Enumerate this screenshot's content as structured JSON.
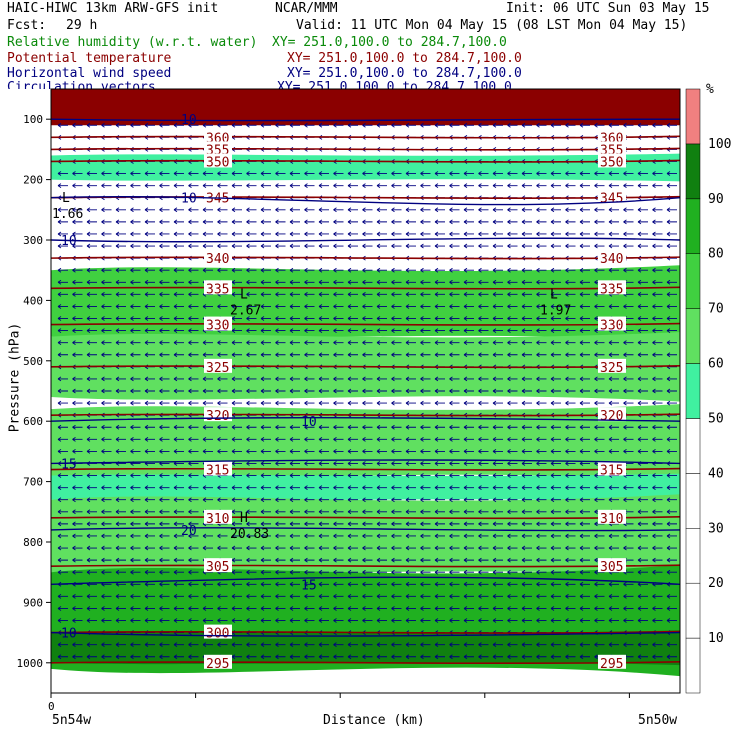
{
  "header": {
    "model": "HAIC-HIWC 13km ARW-GFS init",
    "org": "NCAR/MMM",
    "init": "Init: 06 UTC Sun 03 May 15",
    "fcst_label": "Fcst:",
    "fcst_value": "29 h",
    "valid": "Valid: 11 UTC Mon 04 May 15 (08 LST Mon 04 May 15)"
  },
  "fields": [
    {
      "name": "Relative humidity (w.r.t. water)",
      "xy": "XY= 251.0,100.0 to 284.7,100.0",
      "color": "#0a8a0a"
    },
    {
      "name": "Potential temperature",
      "xy": "XY= 251.0,100.0 to 284.7,100.0",
      "color": "#8b0000"
    },
    {
      "name": "Horizontal wind speed",
      "xy": "XY= 251.0,100.0 to 284.7,100.0",
      "color": "#000080"
    },
    {
      "name": "Circulation vectors",
      "xy": "XY= 251.0,100.0 to 284.7,100.0",
      "color": "#000080"
    }
  ],
  "colors": {
    "rh": [
      "#ffffff",
      "#ffffff",
      "#ffffff",
      "#ffffff",
      "#ffffff",
      "#40f0a0",
      "#60e060",
      "#40d040",
      "#20b020",
      "#108010",
      "#f08080"
    ],
    "theta": "#8b0000",
    "wind": "#000080"
  },
  "chart_data": {
    "type": "heatmap",
    "title": "",
    "xlabel": "Distance (km)",
    "ylabel": "Pressure (hPa)",
    "x_ticks": [
      "0"
    ],
    "x_endpoints": [
      "5n54w",
      "5n50w"
    ],
    "y_ticks": [
      100,
      200,
      300,
      400,
      500,
      600,
      700,
      800,
      900,
      1000
    ],
    "ylim": [
      1050,
      50
    ],
    "colorbar": {
      "unit": "%",
      "levels": [
        10,
        20,
        30,
        40,
        50,
        60,
        70,
        80,
        90,
        100
      ]
    },
    "rh_bands": [
      {
        "p_top": 160,
        "p_bot": 200,
        "rh": 55
      },
      {
        "p_top": 350,
        "p_bot": 460,
        "rh": 75
      },
      {
        "p_top": 460,
        "p_bot": 560,
        "rh": 60
      },
      {
        "p_top": 580,
        "p_bot": 690,
        "rh": 60
      },
      {
        "p_top": 690,
        "p_bot": 730,
        "rh": 55
      },
      {
        "p_top": 730,
        "p_bot": 850,
        "rh": 60
      },
      {
        "p_top": 850,
        "p_bot": 1010,
        "rh": 80
      },
      {
        "p_top": 950,
        "p_bot": 1000,
        "rh": 95
      }
    ],
    "theta_contours": [
      {
        "value": 360,
        "p": 130,
        "labels": [
          "360",
          "360"
        ]
      },
      {
        "value": 355,
        "p": 150,
        "labels": [
          "355",
          "355"
        ]
      },
      {
        "value": 350,
        "p": 170,
        "labels": [
          "350",
          "350"
        ]
      },
      {
        "value": 345,
        "p": 230,
        "labels": [
          "345",
          "345"
        ]
      },
      {
        "value": 340,
        "p": 330,
        "labels": [
          "340",
          "340"
        ]
      },
      {
        "value": 335,
        "p": 380,
        "labels": [
          "335",
          "335"
        ]
      },
      {
        "value": 330,
        "p": 440,
        "labels": [
          "330",
          "330"
        ]
      },
      {
        "value": 325,
        "p": 510,
        "labels": [
          "325",
          "325"
        ]
      },
      {
        "value": 320,
        "p": 590,
        "labels": [
          "320",
          "320"
        ]
      },
      {
        "value": 315,
        "p": 680,
        "labels": [
          "315",
          "315"
        ]
      },
      {
        "value": 310,
        "p": 760,
        "labels": [
          "310",
          "310"
        ]
      },
      {
        "value": 305,
        "p": 840,
        "labels": [
          "305",
          "305"
        ]
      },
      {
        "value": 300,
        "p": 950,
        "labels": [
          "300"
        ]
      },
      {
        "value": 295,
        "p": 1000,
        "labels": [
          "295",
          "295"
        ]
      }
    ],
    "wind_labels": [
      {
        "text": "10",
        "p": 300
      },
      {
        "text": "10",
        "p": 230
      },
      {
        "text": "10",
        "p": 600
      },
      {
        "text": "15",
        "p": 670
      },
      {
        "text": "20",
        "p": 780
      },
      {
        "text": "15",
        "p": 870
      },
      {
        "text": "10",
        "p": 950
      },
      {
        "text": "10",
        "p": 100
      }
    ],
    "extrema": [
      {
        "mark": "L",
        "value": "2.67"
      },
      {
        "mark": "L",
        "value": "1.97"
      },
      {
        "mark": "H",
        "value": "20.83"
      },
      {
        "mark": "L",
        "value": "1.66"
      }
    ]
  }
}
